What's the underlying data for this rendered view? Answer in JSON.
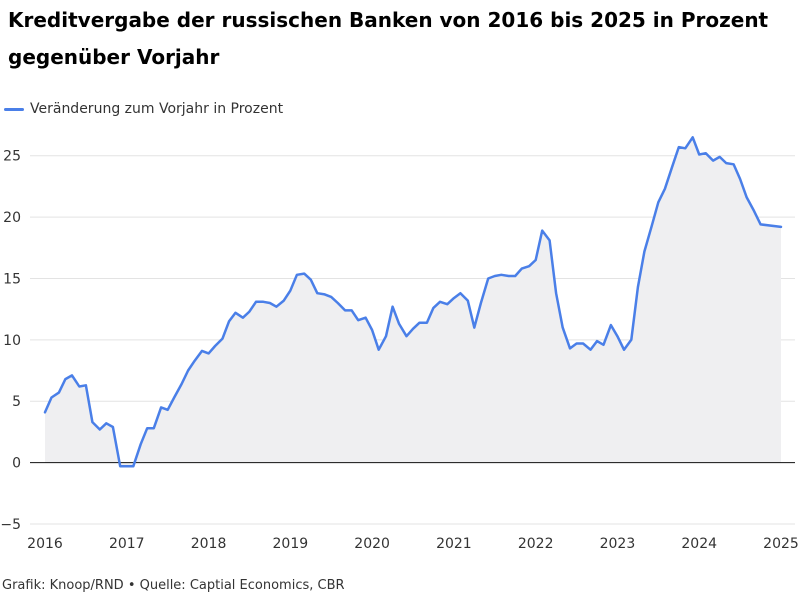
{
  "title": "Kreditvergabe der russischen Banken von 2016 bis 2025 in Prozent gegenüber Vorjahr",
  "footer": "Grafik: Knoop/RND • Quelle: Captial Economics, CBR",
  "colors": {
    "line": "#4a7fe8",
    "area": "#efeff1",
    "grid": "#e3e3e3",
    "zero": "#111111"
  },
  "chart_data": {
    "type": "area",
    "legend": {
      "position": "top-left",
      "label": "Veränderung zum Vorjahr in Prozent"
    },
    "grid": true,
    "xlim": [
      2016,
      2025
    ],
    "ylim": [
      -5,
      27.5
    ],
    "xticks": [
      {
        "value": 2016,
        "label": "2016"
      },
      {
        "value": 2017,
        "label": "2017"
      },
      {
        "value": 2018,
        "label": "2018"
      },
      {
        "value": 2019,
        "label": "2019"
      },
      {
        "value": 2020,
        "label": "2020"
      },
      {
        "value": 2021,
        "label": "2021"
      },
      {
        "value": 2022,
        "label": "2022"
      },
      {
        "value": 2023,
        "label": "2023"
      },
      {
        "value": 2024,
        "label": "2024"
      },
      {
        "value": 2025,
        "label": "2025"
      }
    ],
    "yticks": [
      {
        "value": -5,
        "label": "−5"
      },
      {
        "value": 0,
        "label": "0"
      },
      {
        "value": 5,
        "label": "5"
      },
      {
        "value": 10,
        "label": "10"
      },
      {
        "value": 15,
        "label": "15"
      },
      {
        "value": 20,
        "label": "20"
      },
      {
        "value": 25,
        "label": "25"
      }
    ],
    "series": [
      {
        "name": "Veränderung zum Vorjahr in Prozent",
        "points": [
          [
            2016.0,
            4.1
          ],
          [
            2016.08,
            5.3
          ],
          [
            2016.17,
            5.7
          ],
          [
            2016.25,
            6.8
          ],
          [
            2016.33,
            7.1
          ],
          [
            2016.42,
            6.2
          ],
          [
            2016.5,
            6.3
          ],
          [
            2016.58,
            3.3
          ],
          [
            2016.67,
            2.7
          ],
          [
            2016.75,
            3.2
          ],
          [
            2016.83,
            2.9
          ],
          [
            2016.92,
            -0.3
          ],
          [
            2017.0,
            -0.3
          ],
          [
            2017.08,
            -0.3
          ],
          [
            2017.17,
            1.5
          ],
          [
            2017.25,
            2.8
          ],
          [
            2017.33,
            2.8
          ],
          [
            2017.42,
            4.5
          ],
          [
            2017.5,
            4.3
          ],
          [
            2017.58,
            5.3
          ],
          [
            2017.67,
            6.4
          ],
          [
            2017.75,
            7.5
          ],
          [
            2017.83,
            8.3
          ],
          [
            2017.92,
            9.1
          ],
          [
            2018.0,
            8.9
          ],
          [
            2018.08,
            9.5
          ],
          [
            2018.17,
            10.1
          ],
          [
            2018.25,
            11.5
          ],
          [
            2018.33,
            12.2
          ],
          [
            2018.42,
            11.8
          ],
          [
            2018.5,
            12.3
          ],
          [
            2018.58,
            13.1
          ],
          [
            2018.67,
            13.1
          ],
          [
            2018.75,
            13.0
          ],
          [
            2018.83,
            12.7
          ],
          [
            2018.92,
            13.2
          ],
          [
            2019.0,
            14.0
          ],
          [
            2019.08,
            15.3
          ],
          [
            2019.17,
            15.4
          ],
          [
            2019.25,
            14.9
          ],
          [
            2019.33,
            13.8
          ],
          [
            2019.42,
            13.7
          ],
          [
            2019.5,
            13.5
          ],
          [
            2019.58,
            13.0
          ],
          [
            2019.67,
            12.4
          ],
          [
            2019.75,
            12.4
          ],
          [
            2019.83,
            11.6
          ],
          [
            2019.92,
            11.8
          ],
          [
            2020.0,
            10.8
          ],
          [
            2020.08,
            9.2
          ],
          [
            2020.17,
            10.3
          ],
          [
            2020.25,
            12.7
          ],
          [
            2020.33,
            11.3
          ],
          [
            2020.42,
            10.3
          ],
          [
            2020.5,
            10.9
          ],
          [
            2020.58,
            11.4
          ],
          [
            2020.67,
            11.4
          ],
          [
            2020.75,
            12.6
          ],
          [
            2020.83,
            13.1
          ],
          [
            2020.92,
            12.9
          ],
          [
            2021.0,
            13.4
          ],
          [
            2021.08,
            13.8
          ],
          [
            2021.17,
            13.2
          ],
          [
            2021.25,
            11.0
          ],
          [
            2021.33,
            13.0
          ],
          [
            2021.42,
            15.0
          ],
          [
            2021.5,
            15.2
          ],
          [
            2021.58,
            15.3
          ],
          [
            2021.67,
            15.2
          ],
          [
            2021.75,
            15.2
          ],
          [
            2021.83,
            15.8
          ],
          [
            2021.92,
            16.0
          ],
          [
            2022.0,
            16.5
          ],
          [
            2022.08,
            18.9
          ],
          [
            2022.17,
            18.1
          ],
          [
            2022.25,
            13.8
          ],
          [
            2022.33,
            11.0
          ],
          [
            2022.42,
            9.3
          ],
          [
            2022.5,
            9.7
          ],
          [
            2022.58,
            9.7
          ],
          [
            2022.67,
            9.2
          ],
          [
            2022.75,
            9.9
          ],
          [
            2022.83,
            9.6
          ],
          [
            2022.92,
            11.2
          ],
          [
            2023.0,
            10.3
          ],
          [
            2023.08,
            9.2
          ],
          [
            2023.17,
            10.0
          ],
          [
            2023.25,
            14.3
          ],
          [
            2023.33,
            17.2
          ],
          [
            2023.42,
            19.3
          ],
          [
            2023.5,
            21.2
          ],
          [
            2023.58,
            22.3
          ],
          [
            2023.67,
            24.1
          ],
          [
            2023.75,
            25.7
          ],
          [
            2023.83,
            25.6
          ],
          [
            2023.92,
            26.5
          ],
          [
            2024.0,
            25.1
          ],
          [
            2024.08,
            25.2
          ],
          [
            2024.17,
            24.6
          ],
          [
            2024.25,
            24.9
          ],
          [
            2024.33,
            24.4
          ],
          [
            2024.42,
            24.3
          ],
          [
            2024.5,
            23.1
          ],
          [
            2024.58,
            21.6
          ],
          [
            2024.67,
            20.5
          ],
          [
            2024.75,
            19.4
          ],
          [
            2025.0,
            19.2
          ]
        ]
      }
    ]
  }
}
